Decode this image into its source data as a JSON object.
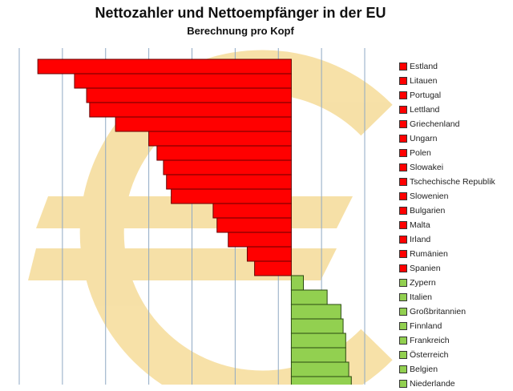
{
  "chart_data": {
    "type": "bar",
    "orientation": "horizontal",
    "title": "Nettozahler und Nettoempfänger in der EU",
    "subtitle": "Berechnung pro Kopf",
    "categories": [
      "Estland",
      "Litauen",
      "Portugal",
      "Lettland",
      "Griechenland",
      "Ungarn",
      "Polen",
      "Slowakei",
      "Tschechische Republik",
      "Slowenien",
      "Bulgarien",
      "Malta",
      "Irland",
      "Rumänien",
      "Spanien",
      "Zypern",
      "Italien",
      "Großbritannien",
      "Finnland",
      "Frankreich",
      "Österreich",
      "Belgien",
      "Niederlande"
    ],
    "values": [
      -5.87,
      -5.02,
      -4.74,
      -4.67,
      -4.07,
      -3.3,
      -3.11,
      -2.96,
      -2.89,
      -2.78,
      -1.81,
      -1.72,
      -1.46,
      -1.02,
      -0.85,
      0.28,
      0.83,
      1.15,
      1.2,
      1.26,
      1.26,
      1.33,
      1.39
    ],
    "xlim": [
      -6.3,
      1.7
    ],
    "grid": true,
    "legend": "right",
    "colors": {
      "negative": "#ff0000",
      "positive": "#92d050",
      "grid": "#8fa9c4",
      "watermark": "#f0c860"
    },
    "watermark": "euro-symbol"
  }
}
